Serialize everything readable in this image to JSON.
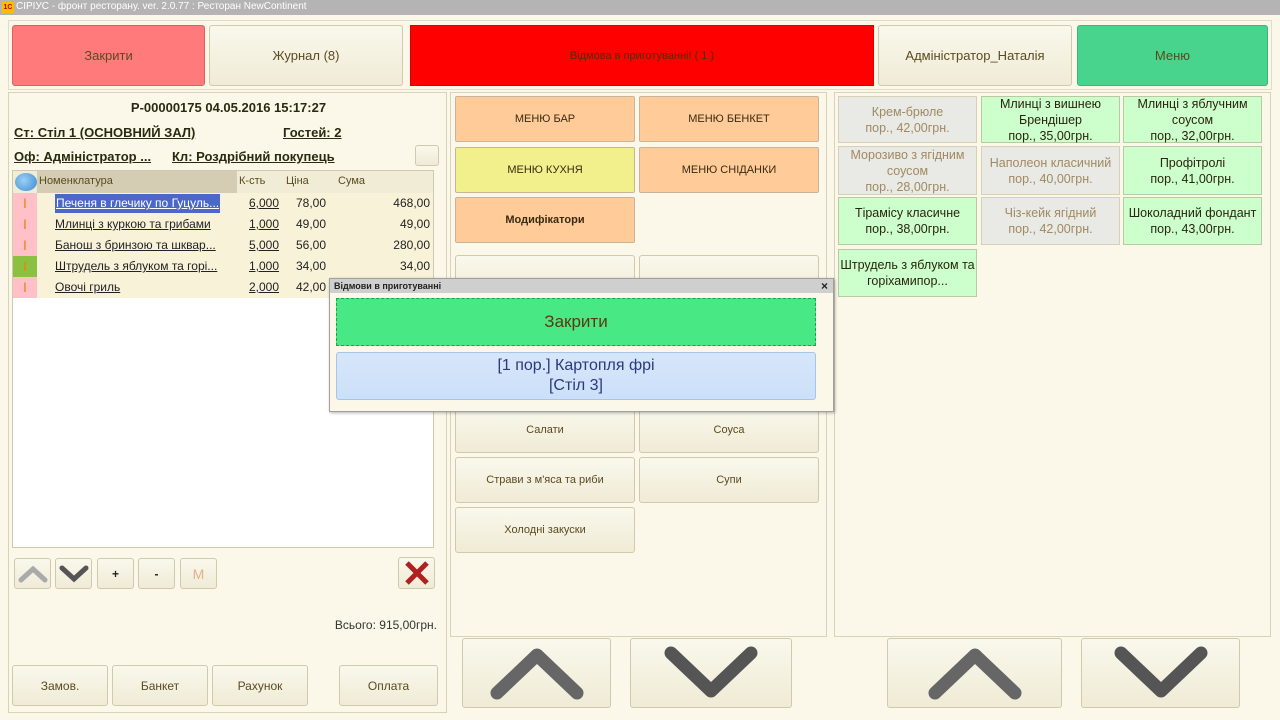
{
  "window": {
    "title": "СІРІУС - фронт ресторану. ver. 2.0.77 : Ресторан NewContinent",
    "logo": "1С"
  },
  "top": {
    "close": "Закрити",
    "journal": "Журнал (8)",
    "alert": "Відмова в приготуванні! ( 1 )",
    "user": "Адміністратор_Наталія",
    "menu": "Меню",
    "colors": {
      "close": "#ff7b7b",
      "alert": "#ff0000",
      "menu": "#48d48c"
    }
  },
  "order": {
    "header": "Р-00000175 04.05.2016 15:17:27",
    "table": "Ст: Стіл 1 (ОСНОВНИЙ ЗАЛ)",
    "guests": "Гостей: 2",
    "waiter": "Оф: Адміністратор  ...",
    "client": "Кл: Роздрібний покупець",
    "columns": [
      "Номенклатура",
      "К-сть",
      "Ціна",
      "Сума"
    ],
    "rows": [
      {
        "mark": "I",
        "status": "#ffc0c8",
        "name": "Печеня в глечику по Гуцуль...",
        "qty": "6,000",
        "price": "78,00",
        "sum": "468,00",
        "selected": true
      },
      {
        "mark": "I",
        "status": "#ffc0c8",
        "name": "Млинці з куркою та грибами",
        "qty": "1,000",
        "price": "49,00",
        "sum": "49,00"
      },
      {
        "mark": "I",
        "status": "#ffc0c8",
        "name": "Банош з бринзою та шквар...",
        "qty": "5,000",
        "price": "56,00",
        "sum": "280,00"
      },
      {
        "mark": "I",
        "status": "#8cc040",
        "name": "Штрудель з яблуком та горі...",
        "qty": "1,000",
        "price": "34,00",
        "sum": "34,00"
      },
      {
        "mark": "I",
        "status": "#ffc0c8",
        "name": "Овочі гриль",
        "qty": "2,000",
        "price": "42,00",
        "sum": ""
      }
    ],
    "controls": {
      "plus": "+",
      "minus": "-",
      "m": "M"
    },
    "total": "Всього: 915,00грн.",
    "buttons": [
      "Замов.",
      "Банкет",
      "Рахунок",
      "Оплата"
    ]
  },
  "menu_groups": [
    {
      "label": "МЕНЮ БАР",
      "color": "#ffcc99"
    },
    {
      "label": "МЕНЮ БЕНКЕТ",
      "color": "#ffcc99"
    },
    {
      "label": "МЕНЮ КУХНЯ",
      "color": "#f2f08c"
    },
    {
      "label": "МЕНЮ СНІДАНКИ",
      "color": "#ffcc99"
    },
    {
      "label": "Модифікатори",
      "color": "#ffcc99"
    }
  ],
  "categories": [
    "Салати",
    "Соуса",
    "Страви з м'яса та риби",
    "Супи",
    "Холодні закуски"
  ],
  "dishes": [
    {
      "name": "Крем-брюле",
      "price": "пор., 42,00грн.",
      "available": false
    },
    {
      "name": "Млинці з вишнею Брендішер",
      "price": "пор., 35,00грн.",
      "available": true
    },
    {
      "name": "Млинці з яблучним соусом",
      "price": "пор., 32,00грн.",
      "available": true
    },
    {
      "name": "Морозиво з ягідним соусом",
      "price": "пор., 28,00грн.",
      "available": false
    },
    {
      "name": "Наполеон класичний",
      "price": "пор., 40,00грн.",
      "available": false
    },
    {
      "name": "Профітролі",
      "price": "пор., 41,00грн.",
      "available": true
    },
    {
      "name": "Тірамісу класичне",
      "price": "пор., 38,00грн.",
      "available": true
    },
    {
      "name": "Чіз-кейк ягідний",
      "price": "пор., 42,00грн.",
      "available": false
    },
    {
      "name": "Шоколадний фондант",
      "price": "пор., 43,00грн.",
      "available": true
    },
    {
      "name": "Штрудель з яблуком та горіхамипор...",
      "price": "",
      "available": true
    }
  ],
  "dialog": {
    "title": "Відмови в приготуванні",
    "close": "Закрити",
    "item_line1": "[1 пор.] Картопля фрі",
    "item_line2": "[Стіл 3]"
  }
}
